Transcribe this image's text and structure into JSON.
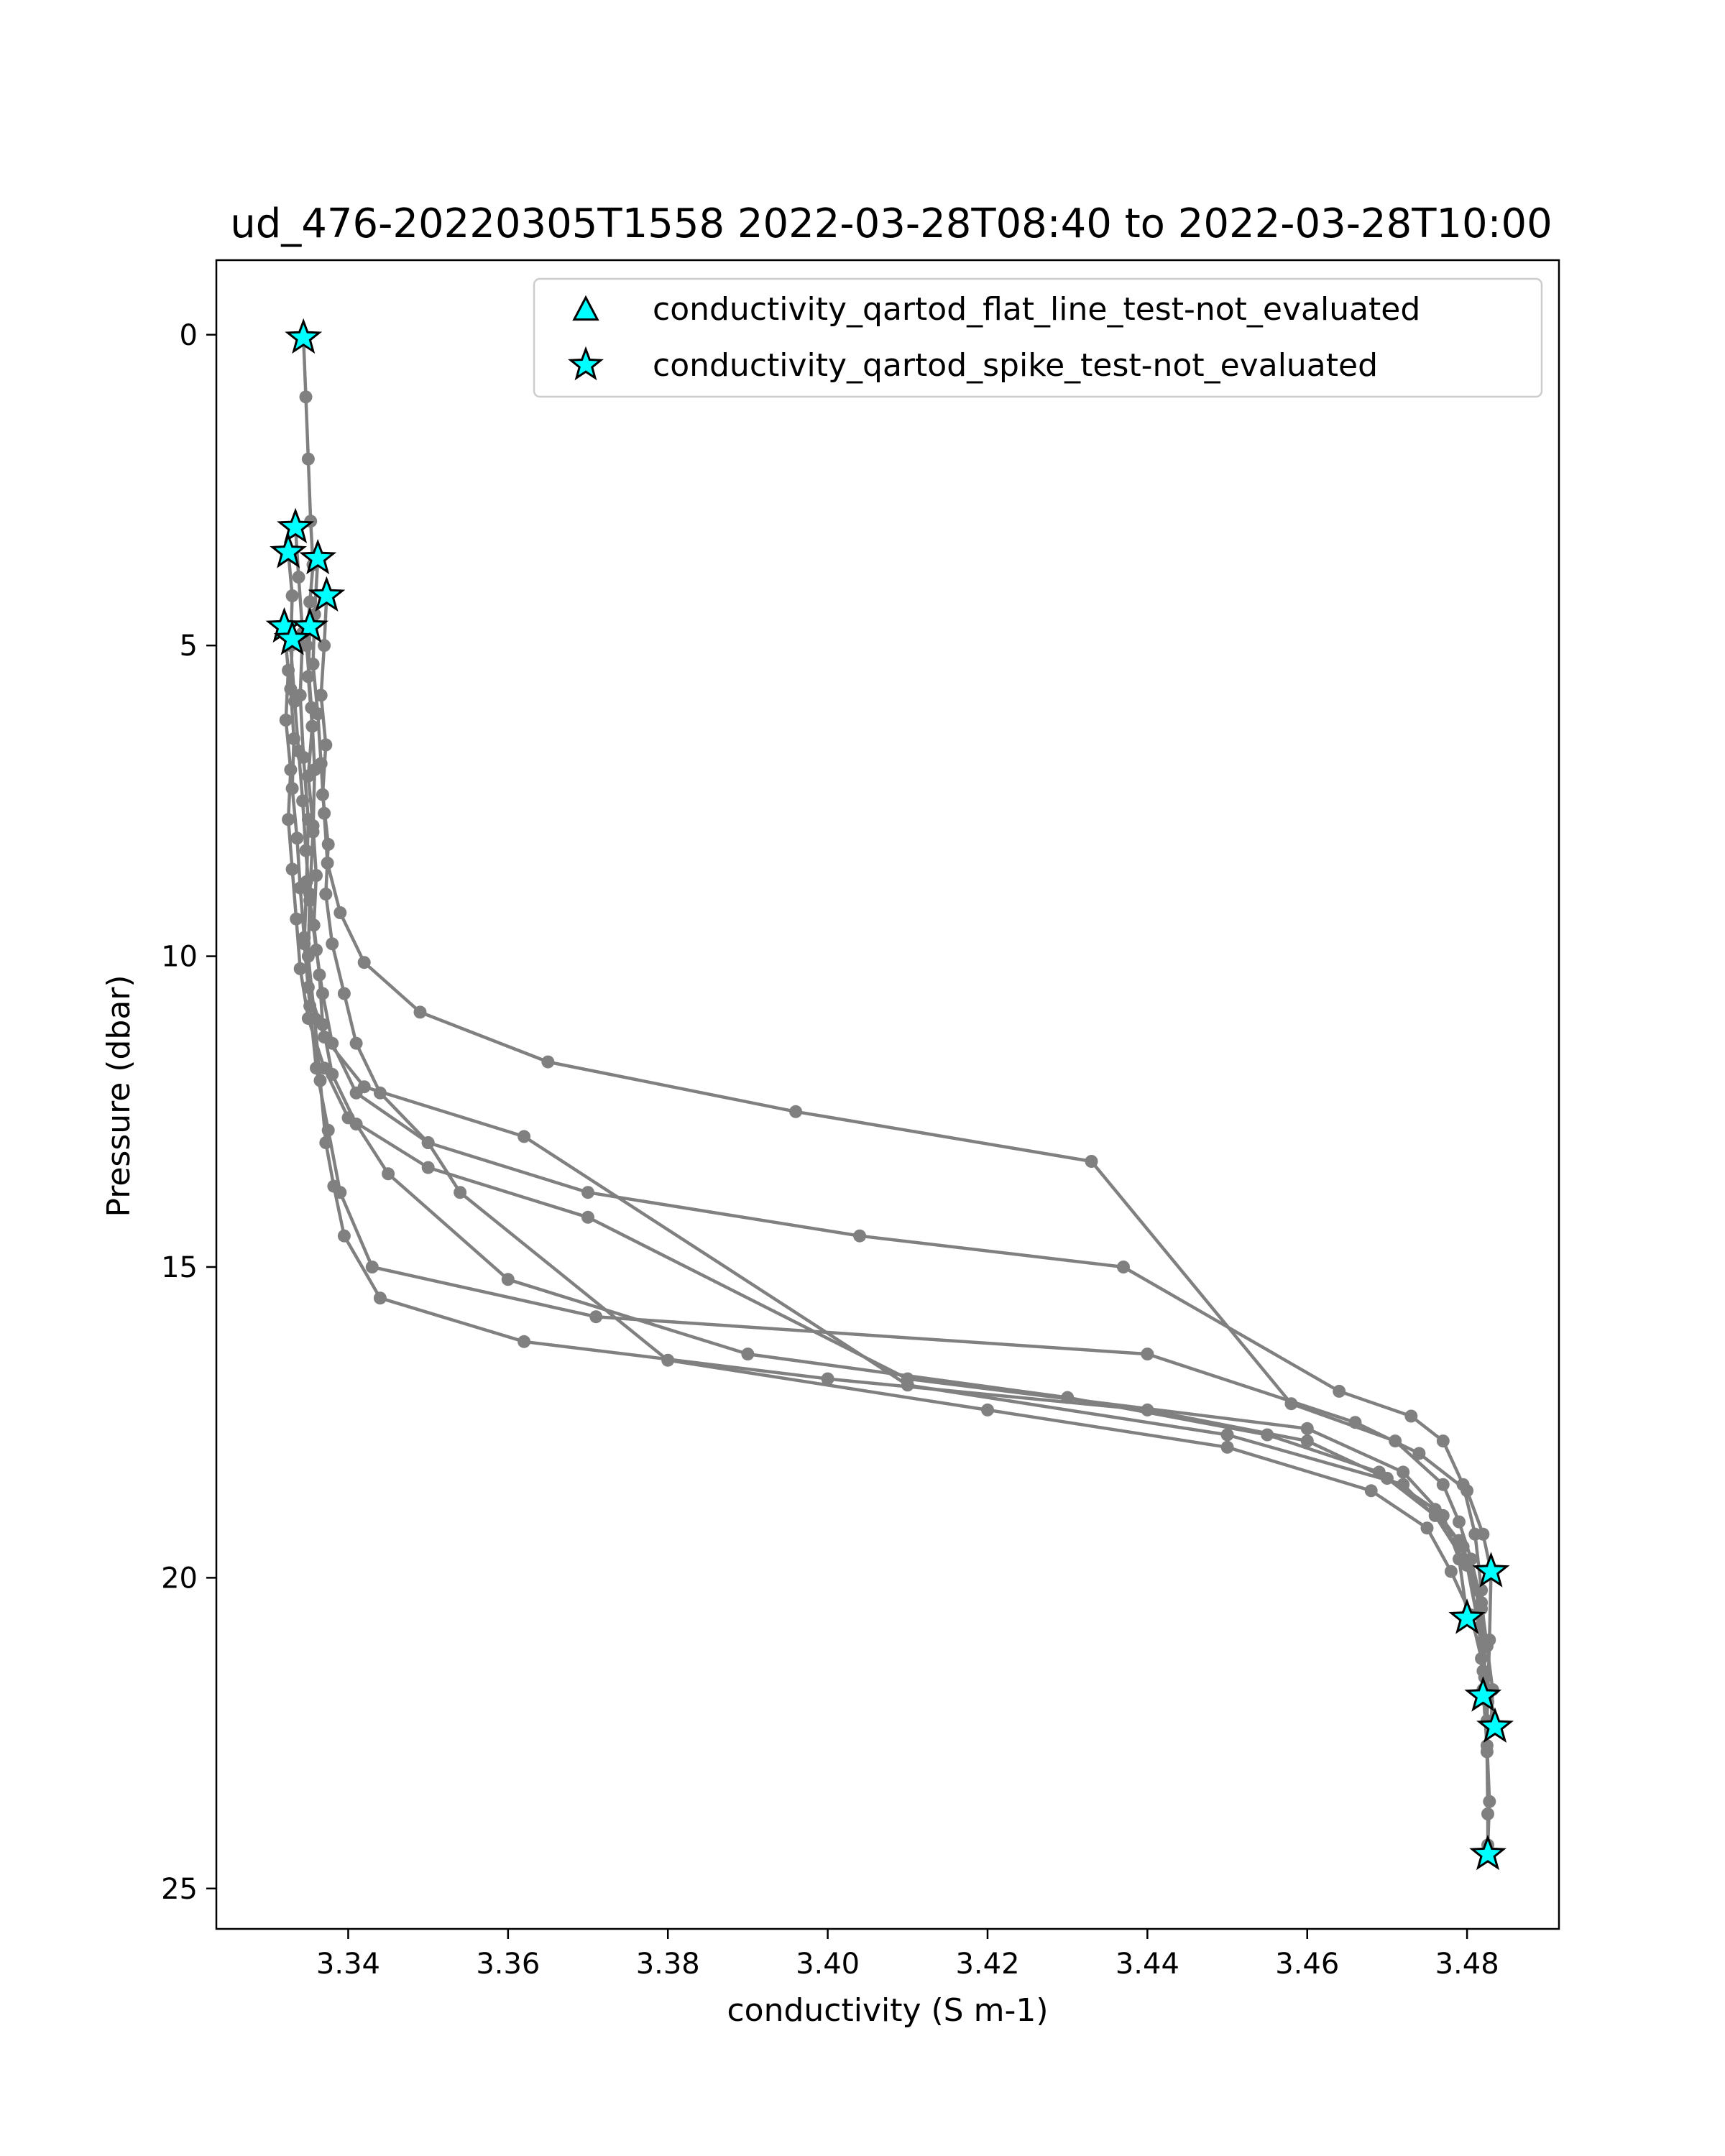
{
  "chart_data": {
    "type": "line",
    "title": "ud_476-20220305T1558 2022-03-28T08:40 to 2022-03-28T10:00",
    "xlabel": "conductivity (S m-1)",
    "ylabel": "Pressure (dbar)",
    "xlim": [
      3.3235,
      3.4915
    ],
    "ylim": [
      25.65,
      -1.2
    ],
    "y_inverted": true,
    "grid": false,
    "legend_position": "upper-right",
    "x_ticks": [
      3.34,
      3.36,
      3.38,
      3.4,
      3.42,
      3.44,
      3.46,
      3.48
    ],
    "x_tick_labels": [
      "3.34",
      "3.36",
      "3.38",
      "3.40",
      "3.42",
      "3.44",
      "3.46",
      "3.48"
    ],
    "y_ticks": [
      0,
      5,
      10,
      15,
      20,
      25
    ],
    "y_tick_labels": [
      "0",
      "5",
      "10",
      "15",
      "20",
      "25"
    ],
    "line_color": "#808080",
    "marker_color": "#00ffff",
    "profiles": [
      {
        "x": [
          3.3344,
          3.3347,
          3.335,
          3.3353,
          3.3356,
          3.3352,
          3.3348,
          3.3354,
          3.3358,
          3.3356,
          3.3352,
          3.335,
          3.3358,
          3.3365,
          3.3372,
          3.3382,
          3.3395,
          3.344,
          3.362,
          3.4,
          3.44,
          3.46,
          3.47,
          3.476,
          3.48,
          3.4815,
          3.482,
          3.4825,
          3.4828,
          3.4826
        ],
        "y": [
          0.05,
          1.0,
          2.0,
          3.0,
          3.7,
          4.3,
          5.0,
          6.0,
          7.0,
          8.0,
          9.0,
          10.0,
          11.0,
          12.0,
          13.0,
          13.7,
          14.5,
          15.5,
          16.2,
          16.8,
          17.3,
          17.8,
          18.4,
          19.0,
          19.8,
          20.8,
          21.8,
          22.7,
          23.6,
          24.3
        ]
      },
      {
        "x": [
          3.3334,
          3.3338,
          3.3343,
          3.334,
          3.3344,
          3.335,
          3.3348,
          3.3345,
          3.3352,
          3.336,
          3.3375,
          3.339,
          3.343,
          3.371,
          3.44,
          3.466,
          3.474,
          3.48,
          3.482,
          3.483,
          3.4828,
          3.4825
        ],
        "y": [
          3.1,
          3.9,
          4.8,
          5.8,
          6.8,
          7.8,
          8.8,
          9.8,
          10.8,
          11.8,
          12.8,
          13.8,
          15.0,
          15.8,
          16.4,
          17.5,
          18.0,
          18.6,
          19.3,
          19.9,
          21.0,
          22.3
        ]
      },
      {
        "x": [
          3.3325,
          3.333,
          3.3328,
          3.3333,
          3.3338,
          3.3343,
          3.3347,
          3.3352,
          3.336,
          3.3368,
          3.338,
          3.341,
          3.35,
          3.37,
          3.404,
          3.437,
          3.464,
          3.473,
          3.477,
          3.4795,
          3.481,
          3.4818,
          3.4822,
          3.4822
        ],
        "y": [
          3.5,
          4.2,
          5.0,
          5.9,
          6.7,
          7.5,
          8.3,
          9.1,
          9.9,
          10.6,
          11.4,
          12.2,
          13.0,
          13.8,
          14.5,
          15.0,
          17.0,
          17.4,
          17.8,
          18.5,
          19.3,
          20.2,
          21.0,
          21.9
        ]
      },
      {
        "x": [
          3.3362,
          3.3358,
          3.3356,
          3.3362,
          3.3366,
          3.337,
          3.3374,
          3.339,
          3.342,
          3.349,
          3.365,
          3.396,
          3.433,
          3.458,
          3.471,
          3.477,
          3.479,
          3.4805,
          3.4818,
          3.4825,
          3.4832,
          3.483
        ],
        "y": [
          3.6,
          4.5,
          5.3,
          6.1,
          6.9,
          7.7,
          8.5,
          9.3,
          10.1,
          10.9,
          11.7,
          12.5,
          13.3,
          17.2,
          17.8,
          18.5,
          19.1,
          19.7,
          20.4,
          21.1,
          21.8,
          22.4
        ]
      },
      {
        "x": [
          3.3373,
          3.337,
          3.3366,
          3.3372,
          3.3368,
          3.3375,
          3.3372,
          3.338,
          3.3395,
          3.341,
          3.344,
          3.35,
          3.354,
          3.38,
          3.42,
          3.45,
          3.468,
          3.475,
          3.478,
          3.4805,
          3.4818,
          3.4826
        ],
        "y": [
          4.2,
          5.0,
          5.8,
          6.6,
          7.4,
          8.2,
          9.0,
          9.8,
          10.6,
          11.4,
          12.2,
          13.0,
          13.8,
          16.5,
          17.3,
          17.9,
          18.6,
          19.2,
          19.9,
          20.6,
          21.3,
          22.0
        ]
      },
      {
        "x": [
          3.332,
          3.3325,
          3.3322,
          3.3328,
          3.3325,
          3.333,
          3.3335,
          3.334,
          3.335,
          3.337,
          3.34,
          3.35,
          3.37,
          3.41,
          3.46,
          3.472,
          3.477,
          3.479,
          3.48
        ],
        "y": [
          4.7,
          5.4,
          6.2,
          7.0,
          7.8,
          8.6,
          9.4,
          10.2,
          11.0,
          11.8,
          12.6,
          13.4,
          14.2,
          16.8,
          17.6,
          18.3,
          19.0,
          19.7,
          20.6
        ]
      },
      {
        "x": [
          3.3352,
          3.335,
          3.3355,
          3.335,
          3.3356,
          3.336,
          3.3357,
          3.3364,
          3.3368,
          3.338,
          3.341,
          3.345,
          3.36,
          3.39,
          3.43,
          3.455,
          3.469,
          3.476,
          3.4795,
          3.4812,
          3.482,
          3.4825,
          3.4826,
          3.4826
        ],
        "y": [
          4.7,
          5.5,
          6.3,
          7.1,
          7.9,
          8.7,
          9.5,
          10.3,
          11.1,
          11.9,
          12.7,
          13.5,
          15.2,
          16.4,
          17.1,
          17.7,
          18.3,
          18.9,
          19.5,
          20.2,
          21.5,
          22.8,
          23.8,
          24.4
        ]
      },
      {
        "x": [
          3.333,
          3.3328,
          3.3332,
          3.333,
          3.3336,
          3.334,
          3.3345,
          3.335,
          3.337,
          3.342,
          3.362,
          3.41,
          3.45,
          3.472,
          3.479,
          3.4818,
          3.4822
        ],
        "y": [
          4.9,
          5.7,
          6.5,
          7.3,
          8.1,
          8.9,
          9.7,
          10.5,
          11.3,
          12.1,
          12.9,
          16.9,
          17.7,
          18.5,
          19.4,
          20.5,
          21.6
        ]
      }
    ],
    "series": [
      {
        "name": "conductivity_qartod_flat_line_test-not_evaluated",
        "marker": "triangle",
        "x": [],
        "y": []
      },
      {
        "name": "conductivity_qartod_spike_test-not_evaluated",
        "marker": "star",
        "x": [
          3.3344,
          3.3334,
          3.3325,
          3.3362,
          3.3373,
          3.332,
          3.3352,
          3.333,
          3.483,
          3.48,
          3.482,
          3.4835,
          3.4826
        ],
        "y": [
          0.05,
          3.1,
          3.5,
          3.6,
          4.2,
          4.7,
          4.7,
          4.9,
          19.9,
          20.65,
          21.9,
          22.4,
          24.45
        ]
      }
    ]
  }
}
